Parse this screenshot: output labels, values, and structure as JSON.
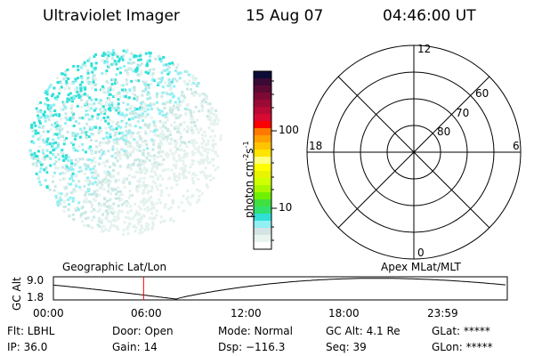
{
  "header": {
    "instrument": "Ultraviolet Imager",
    "date": "15 Aug 07",
    "time": "04:46:00 UT"
  },
  "colorbar": {
    "label": "photon cm^-2 s^-1",
    "label_base": "photon cm",
    "exp1": "-2",
    "s": "s",
    "exp2": "-1",
    "ticks": [
      "100",
      "10"
    ],
    "colors": [
      "#0c0c38",
      "#3a0a34",
      "#5c0a34",
      "#7c0a34",
      "#9a0a34",
      "#b80a34",
      "#d80a34",
      "#ff0000",
      "#ff7800",
      "#ffa000",
      "#ffc400",
      "#ffe400",
      "#ffff80",
      "#ffff00",
      "#e8f400",
      "#d0ff00",
      "#a8f800",
      "#70f000",
      "#40e040",
      "#30e070",
      "#30e0d8",
      "#90f0f4",
      "#d4e4e4",
      "#e8f4ee",
      "#ffffff"
    ]
  },
  "polar": {
    "mlt_labels": {
      "top": "12",
      "bottom": "0",
      "left": "18",
      "right": "6"
    },
    "lat_labels": [
      "60",
      "70",
      "80"
    ]
  },
  "timeline": {
    "ylabel": "GC Alt",
    "yticks": [
      "9.0",
      "1.8"
    ],
    "left_label": "Geographic Lat/Lon",
    "right_label": "Apex MLat/MLT",
    "xticks": [
      "00:00",
      "06:00",
      "12:00",
      "18:00",
      "23:59"
    ],
    "current_time_hours": 4.77,
    "marker_color": "#ff0000"
  },
  "info": {
    "row1": [
      "Flt: LBHL",
      "Door: Open",
      "Mode: Normal",
      "GC Alt: 4.1 Re",
      "GLat: *****"
    ],
    "row2": [
      "IP: 36.0",
      "Gain: 14",
      "Dsp: −116.3",
      "Seq: 39",
      "GLon: *****"
    ]
  }
}
